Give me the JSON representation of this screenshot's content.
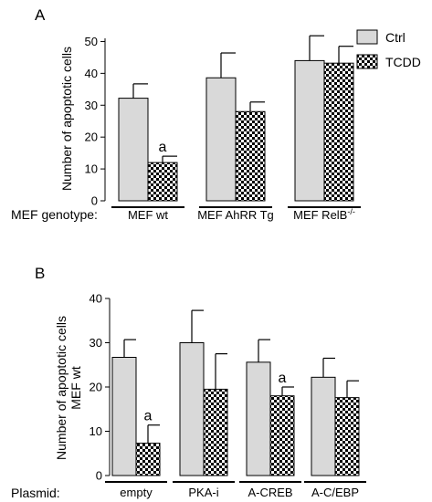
{
  "panel_a": {
    "letter": "A",
    "legend": {
      "ctrl": "Ctrl",
      "tcdd": "TCDD"
    },
    "group_caption": "MEF genotype:",
    "chart_data": {
      "type": "bar",
      "title": "",
      "xlabel": "",
      "ylabel": "Number of apoptotic cells",
      "ylim": [
        0,
        55
      ],
      "yticks": [
        0,
        10,
        20,
        30,
        40,
        50
      ],
      "legend_position": "top-right",
      "grid": false,
      "categories": [
        "MEF wt",
        "MEF AhRR Tg",
        "MEF RelB"
      ],
      "category_superscript": [
        "",
        "",
        "-/-"
      ],
      "series": [
        {
          "name": "Ctrl",
          "values": [
            32.2,
            38.6,
            44.0
          ],
          "errors": [
            4.5,
            7.8,
            7.8
          ],
          "fill": "#d9d9d9"
        },
        {
          "name": "TCDD",
          "values": [
            12.0,
            28.0,
            43.2
          ],
          "errors": [
            2.0,
            3.0,
            5.3
          ],
          "fill": "checker"
        }
      ],
      "annotations": [
        {
          "category_index": 0,
          "series": "TCDD",
          "text": "a"
        }
      ]
    }
  },
  "panel_b": {
    "letter": "B",
    "group_caption": "Plasmid:",
    "chart_data": {
      "type": "bar",
      "title": "",
      "xlabel": "",
      "ylabel": [
        "Number of apoptotic cells",
        "MEF wt"
      ],
      "ylim": [
        0,
        40
      ],
      "yticks": [
        0,
        10,
        20,
        30,
        40
      ],
      "grid": false,
      "categories": [
        "empty",
        "PKA-i",
        "A-CREB",
        "A-C/EBP"
      ],
      "series": [
        {
          "name": "Ctrl",
          "values": [
            26.7,
            30.0,
            25.6,
            22.2
          ],
          "errors": [
            4.0,
            7.3,
            5.1,
            4.3
          ],
          "fill": "#d9d9d9"
        },
        {
          "name": "TCDD",
          "values": [
            7.3,
            19.5,
            18.0,
            17.6
          ],
          "errors": [
            4.1,
            8.0,
            2.0,
            3.8
          ],
          "fill": "checker"
        }
      ],
      "annotations": [
        {
          "category_index": 0,
          "series": "TCDD",
          "text": "a"
        },
        {
          "category_index": 2,
          "series": "TCDD",
          "text": "a"
        }
      ]
    }
  }
}
